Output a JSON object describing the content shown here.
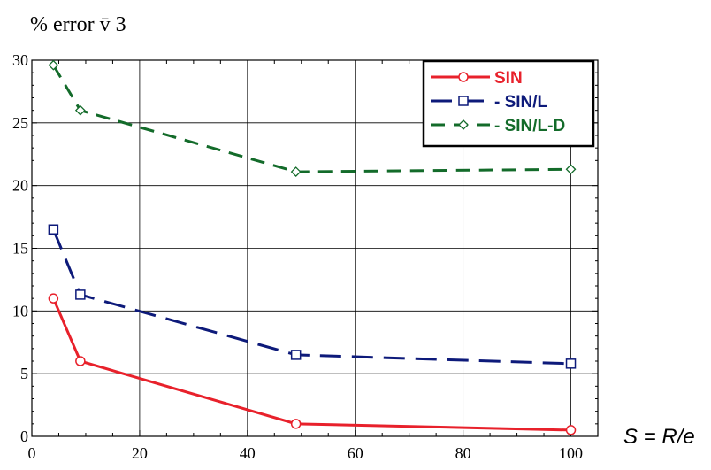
{
  "chart_data": {
    "type": "line",
    "ylabel": "% error v̄ 3",
    "xlabel": "S = R/e",
    "xlim": [
      0,
      105
    ],
    "ylim": [
      0,
      30
    ],
    "xticks": [
      0,
      20,
      40,
      60,
      80,
      100
    ],
    "yticks": [
      0,
      5,
      10,
      15,
      20,
      25,
      30
    ],
    "grid": true,
    "legend_position": "top-right",
    "series": [
      {
        "name": "SIN",
        "color": "#e8212b",
        "dash": "solid",
        "marker": "circle",
        "x": [
          4,
          9,
          49,
          100
        ],
        "y": [
          11,
          6,
          1,
          0.5
        ]
      },
      {
        "name": "- SIN/L",
        "color": "#0d1a7a",
        "dash": "long",
        "marker": "square",
        "x": [
          4,
          9,
          49,
          100
        ],
        "y": [
          16.5,
          11.3,
          6.5,
          5.8
        ]
      },
      {
        "name": "- SIN/L-D",
        "color": "#136b2a",
        "dash": "medium",
        "marker": "diamond",
        "x": [
          4,
          9,
          49,
          100
        ],
        "y": [
          29.6,
          26,
          21.1,
          21.3
        ]
      }
    ]
  }
}
